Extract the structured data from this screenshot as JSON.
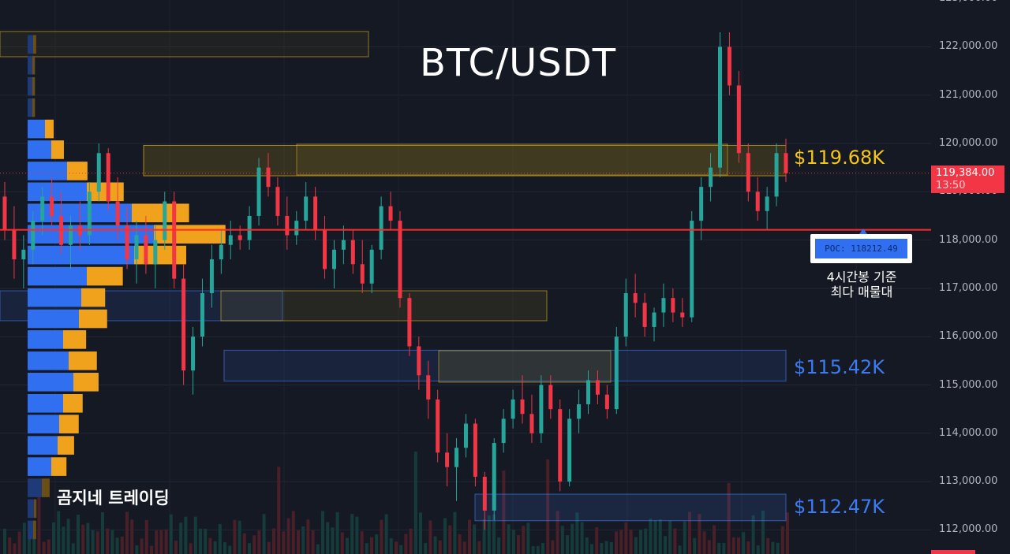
{
  "title": "BTC/USDT",
  "watermark": "곰지네 트레이딩",
  "zone_labels": {
    "upper": "$119.68K",
    "middle": "$115.42K",
    "lower": "$112.47K"
  },
  "poc": {
    "label": "POC: 118212.49",
    "note_line1": "4시간봉 기준",
    "note_line2": "최다 매물대"
  },
  "last_price": {
    "price": "119,384.00",
    "countdown": "13:50"
  },
  "colors": {
    "background": "#151924",
    "up": "#26a69a",
    "down": "#f23645",
    "profile_blue": "#2f6ff0",
    "profile_orange": "#f0a21c",
    "zone_yellow": "#f5c518",
    "zone_blue": "#3d7bf2"
  },
  "chart_data": {
    "type": "candlestick",
    "title": "BTC/USDT",
    "y_ticks": [
      "123,000.00",
      "122,000.00",
      "121,000.00",
      "120,000.00",
      "119,000.00",
      "118,000.00",
      "117,000.00",
      "116,000.00",
      "115,000.00",
      "114,000.00",
      "113,000.00",
      "112,000.00"
    ],
    "y_tick_values": [
      123000,
      122000,
      121000,
      120000,
      119000,
      118000,
      117000,
      116000,
      115000,
      114000,
      113000,
      112000
    ],
    "ylim": [
      111500,
      123000
    ],
    "grid": true,
    "poc_price": 118212.49,
    "last_price": 119384,
    "zones": [
      {
        "name": "$119.68K",
        "low": 119330,
        "high": 119960,
        "color": "yellow"
      },
      {
        "name": "$115.42K",
        "low": 115080,
        "high": 115720,
        "color": "blue"
      },
      {
        "name": "$112.47K",
        "low": 112190,
        "high": 112740,
        "color": "blue"
      }
    ],
    "candles": [
      [
        118900,
        119200,
        118000,
        118200
      ],
      [
        118200,
        118700,
        117200,
        117600
      ],
      [
        117600,
        118100,
        117000,
        117800
      ],
      [
        117800,
        118600,
        117500,
        118400
      ],
      [
        118400,
        119100,
        118100,
        118900
      ],
      [
        118900,
        119300,
        118300,
        118500
      ],
      [
        118500,
        119000,
        117700,
        117900
      ],
      [
        117900,
        118500,
        117400,
        118300
      ],
      [
        118300,
        118800,
        117800,
        118100
      ],
      [
        118100,
        119200,
        117900,
        119000
      ],
      [
        119000,
        120000,
        118800,
        119800
      ],
      [
        119800,
        119900,
        118600,
        118800
      ],
      [
        118800,
        119300,
        118000,
        118300
      ],
      [
        118300,
        118700,
        117400,
        117600
      ],
      [
        117600,
        118400,
        117100,
        118100
      ],
      [
        118100,
        118500,
        117300,
        117500
      ],
      [
        117500,
        118300,
        117000,
        118000
      ],
      [
        118000,
        119000,
        117800,
        118800
      ],
      [
        118800,
        119000,
        117000,
        117200
      ],
      [
        117200,
        117500,
        115000,
        115300
      ],
      [
        115300,
        116200,
        114800,
        116000
      ],
      [
        116000,
        117200,
        115800,
        116900
      ],
      [
        116900,
        117900,
        116600,
        117600
      ],
      [
        117600,
        118200,
        117300,
        117900
      ],
      [
        117900,
        118400,
        117600,
        118100
      ],
      [
        118100,
        118300,
        117800,
        118000
      ],
      [
        118000,
        118700,
        117800,
        118500
      ],
      [
        118500,
        119700,
        118300,
        119500
      ],
      [
        119500,
        119800,
        118900,
        119100
      ],
      [
        119100,
        119300,
        118300,
        118500
      ],
      [
        118500,
        118900,
        117800,
        118100
      ],
      [
        118100,
        118600,
        117900,
        118400
      ],
      [
        118400,
        119200,
        118200,
        118900
      ],
      [
        118900,
        119100,
        118000,
        118200
      ],
      [
        118200,
        118500,
        117200,
        117400
      ],
      [
        117400,
        118000,
        117000,
        117800
      ],
      [
        117800,
        118300,
        117500,
        118000
      ],
      [
        118000,
        118200,
        117300,
        117500
      ],
      [
        117500,
        118000,
        116900,
        117100
      ],
      [
        117100,
        117900,
        116900,
        117800
      ],
      [
        117800,
        118900,
        117600,
        118700
      ],
      [
        118700,
        119000,
        118200,
        118400
      ],
      [
        118400,
        118600,
        116600,
        116800
      ],
      [
        116800,
        116900,
        115600,
        115800
      ],
      [
        115800,
        116000,
        114900,
        115200
      ],
      [
        115200,
        115500,
        114300,
        114700
      ],
      [
        114700,
        114900,
        113400,
        113600
      ],
      [
        113600,
        114000,
        112900,
        113300
      ],
      [
        113300,
        113900,
        112600,
        113700
      ],
      [
        113700,
        114400,
        113500,
        114200
      ],
      [
        114200,
        114300,
        112900,
        113100
      ],
      [
        113100,
        113200,
        112000,
        112400
      ],
      [
        112400,
        113900,
        112200,
        113800
      ],
      [
        113800,
        114500,
        113600,
        114300
      ],
      [
        114300,
        114900,
        114100,
        114700
      ],
      [
        114700,
        115200,
        114200,
        114400
      ],
      [
        114400,
        114800,
        113800,
        114000
      ],
      [
        114000,
        115200,
        113800,
        115000
      ],
      [
        115000,
        115200,
        114300,
        114500
      ],
      [
        114500,
        114700,
        112800,
        113000
      ],
      [
        113000,
        114500,
        112900,
        114300
      ],
      [
        114300,
        114900,
        114000,
        114600
      ],
      [
        114600,
        115300,
        114400,
        115100
      ],
      [
        115100,
        115300,
        114600,
        114800
      ],
      [
        114800,
        115000,
        114300,
        114500
      ],
      [
        114500,
        116200,
        114400,
        116000
      ],
      [
        116000,
        117200,
        115800,
        116900
      ],
      [
        116900,
        117300,
        116400,
        116700
      ],
      [
        116700,
        116900,
        116000,
        116200
      ],
      [
        116200,
        116600,
        115900,
        116500
      ],
      [
        116500,
        117100,
        116200,
        116800
      ],
      [
        116800,
        117000,
        116300,
        116500
      ],
      [
        116500,
        116800,
        116200,
        116400
      ],
      [
        116400,
        118600,
        116300,
        118400
      ],
      [
        118400,
        119300,
        118000,
        119100
      ],
      [
        119100,
        119800,
        118800,
        119500
      ],
      [
        119500,
        122300,
        119300,
        122000
      ],
      [
        122000,
        122300,
        121000,
        121200
      ],
      [
        121200,
        121500,
        119600,
        119800
      ],
      [
        119800,
        120000,
        118800,
        119000
      ],
      [
        119000,
        119300,
        118400,
        118600
      ],
      [
        118600,
        119100,
        118200,
        118900
      ],
      [
        118900,
        120000,
        118700,
        119800
      ],
      [
        119800,
        120100,
        119200,
        119384
      ]
    ],
    "volume_profile": [
      {
        "price": 122050,
        "buy": 7,
        "sell": 7
      },
      {
        "price": 121620,
        "buy": 6,
        "sell": 6
      },
      {
        "price": 121180,
        "buy": 6,
        "sell": 6
      },
      {
        "price": 120740,
        "buy": 6,
        "sell": 6
      },
      {
        "price": 120300,
        "buy": 22,
        "sell": 20
      },
      {
        "price": 119870,
        "buy": 30,
        "sell": 29
      },
      {
        "price": 119430,
        "buy": 50,
        "sell": 47
      },
      {
        "price": 119000,
        "buy": 75,
        "sell": 85
      },
      {
        "price": 118560,
        "buy": 132,
        "sell": 132
      },
      {
        "price": 118120,
        "buy": 160,
        "sell": 165
      },
      {
        "price": 117690,
        "buy": 135,
        "sell": 120
      },
      {
        "price": 117250,
        "buy": 75,
        "sell": 83
      },
      {
        "price": 116810,
        "buy": 68,
        "sell": 55
      },
      {
        "price": 116370,
        "buy": 65,
        "sell": 65
      },
      {
        "price": 115940,
        "buy": 45,
        "sell": 53
      },
      {
        "price": 115500,
        "buy": 52,
        "sell": 65
      },
      {
        "price": 115060,
        "buy": 58,
        "sell": 58
      },
      {
        "price": 114620,
        "buy": 45,
        "sell": 45
      },
      {
        "price": 114190,
        "buy": 40,
        "sell": 45
      },
      {
        "price": 113750,
        "buy": 38,
        "sell": 38
      },
      {
        "price": 113310,
        "buy": 30,
        "sell": 35
      },
      {
        "price": 112870,
        "buy": 18,
        "sell": 18
      },
      {
        "price": 112440,
        "buy": 8,
        "sell": 6
      },
      {
        "price": 112000,
        "buy": 7,
        "sell": 7
      }
    ]
  }
}
